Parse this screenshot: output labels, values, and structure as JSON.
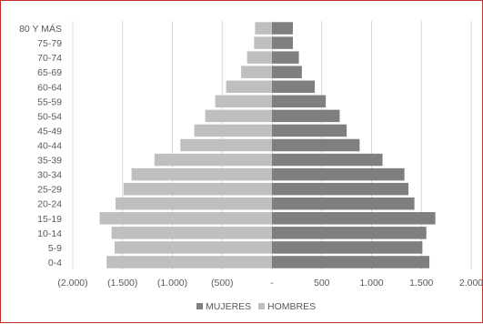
{
  "chart_data": {
    "type": "bar",
    "orientation": "horizontal",
    "categories": [
      "80 Y MÁS",
      "75-79",
      "70-74",
      "65-69",
      "60-64",
      "55-59",
      "50-54",
      "45-49",
      "40-44",
      "35-39",
      "30-34",
      "25-29",
      "20-24",
      "15-19",
      "10-14",
      "5-9",
      "0-4"
    ],
    "series": [
      {
        "name": "MUJERES",
        "color": "#7f7f7f",
        "values": [
          210,
          210,
          270,
          300,
          430,
          540,
          680,
          750,
          880,
          1110,
          1330,
          1370,
          1430,
          1640,
          1550,
          1510,
          1580
        ]
      },
      {
        "name": "HOMBRES",
        "color": "#bfbfbf",
        "values": [
          -170,
          -180,
          -250,
          -310,
          -460,
          -570,
          -670,
          -780,
          -920,
          -1180,
          -1410,
          -1490,
          -1570,
          -1730,
          -1610,
          -1580,
          -1660
        ]
      }
    ],
    "xticks": [
      -2000,
      -1500,
      -1000,
      -500,
      0,
      500,
      1000,
      1500,
      2000
    ],
    "xtick_labels": [
      "(2.000)",
      "(1.500)",
      "(1.000)",
      "(500)",
      "-",
      "500",
      "1.000",
      "1.500",
      "2.000"
    ],
    "xlim": [
      -2000,
      2000
    ],
    "grid": true,
    "legend_position": "bottom",
    "gridline_color": "#d9d9d9",
    "text_color": "#595959"
  }
}
